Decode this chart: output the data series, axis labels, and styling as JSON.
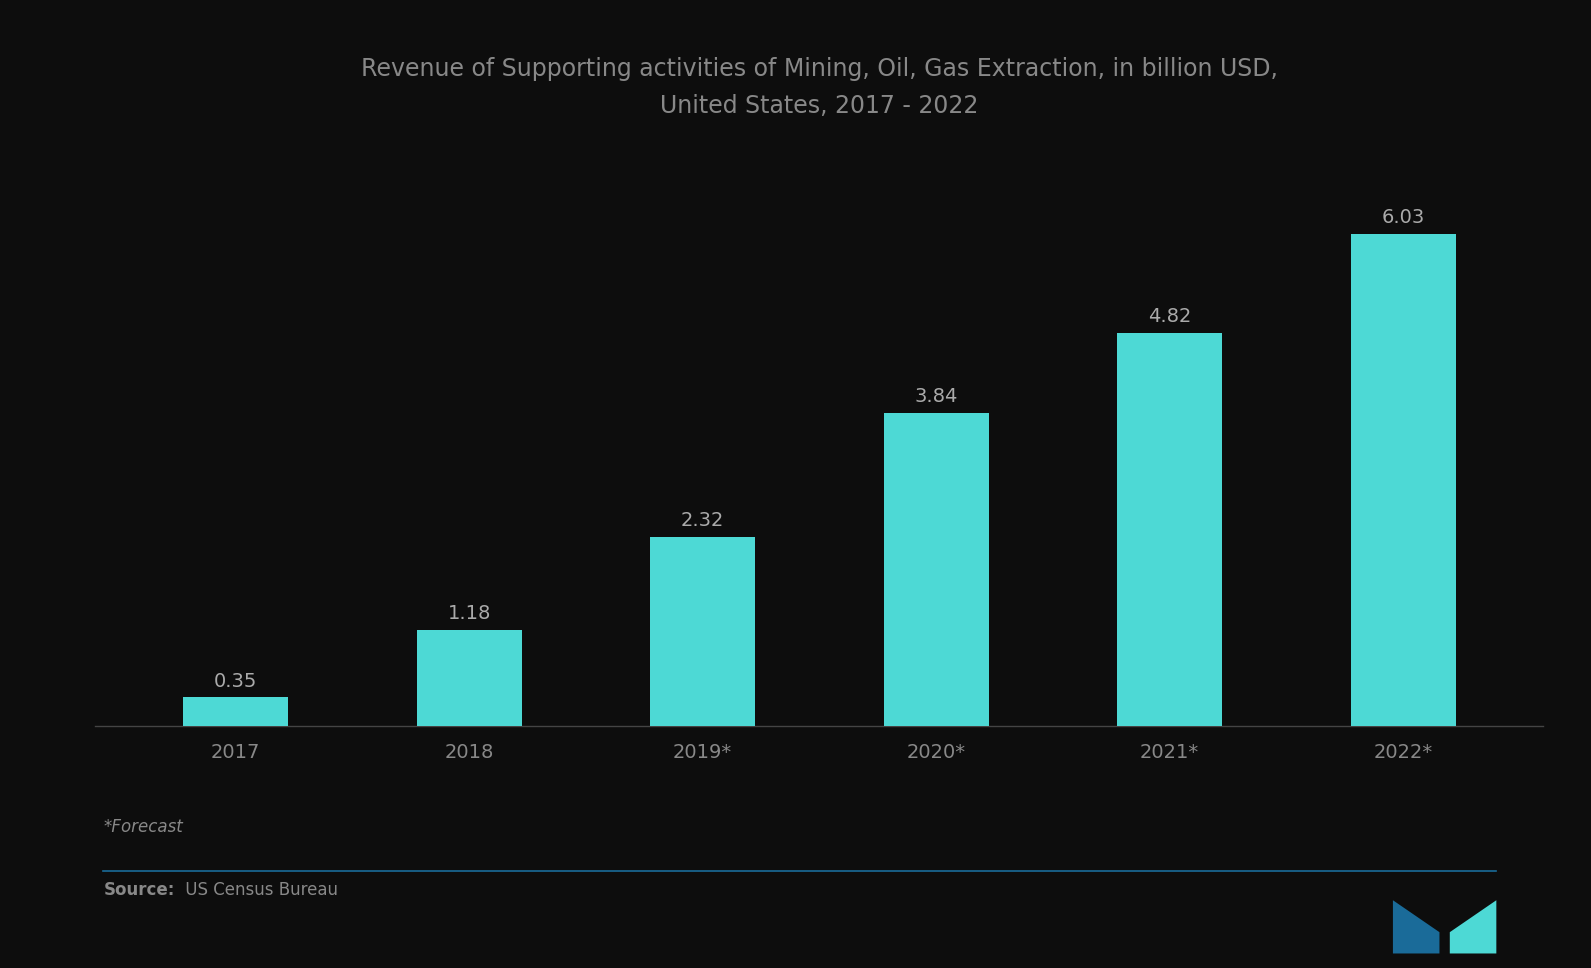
{
  "title_line1": "Revenue of Supporting activities of Mining, Oil, Gas Extraction, in billion USD,",
  "title_line2": "United States, 2017 - 2022",
  "categories": [
    "2017",
    "2018",
    "2019*",
    "2020*",
    "2021*",
    "2022*"
  ],
  "values": [
    0.35,
    1.18,
    2.32,
    3.84,
    4.82,
    6.03
  ],
  "bar_color": "#4DD9D5",
  "background_color": "#0d0d0d",
  "title_color": "#888888",
  "bar_label_color": "#aaaaaa",
  "axis_label_color": "#888888",
  "source_bold": "Source:",
  "source_text": " US Census Bureau",
  "forecast_text": "*Forecast",
  "ylim": [
    0,
    7.0
  ],
  "title_fontsize": 17,
  "label_fontsize": 14,
  "bar_label_fontsize": 14,
  "source_fontsize": 12,
  "forecast_fontsize": 12,
  "logo_color_dark": "#1a6b99",
  "logo_color_teal": "#4DD9D5",
  "line_color": "#1a6b99"
}
